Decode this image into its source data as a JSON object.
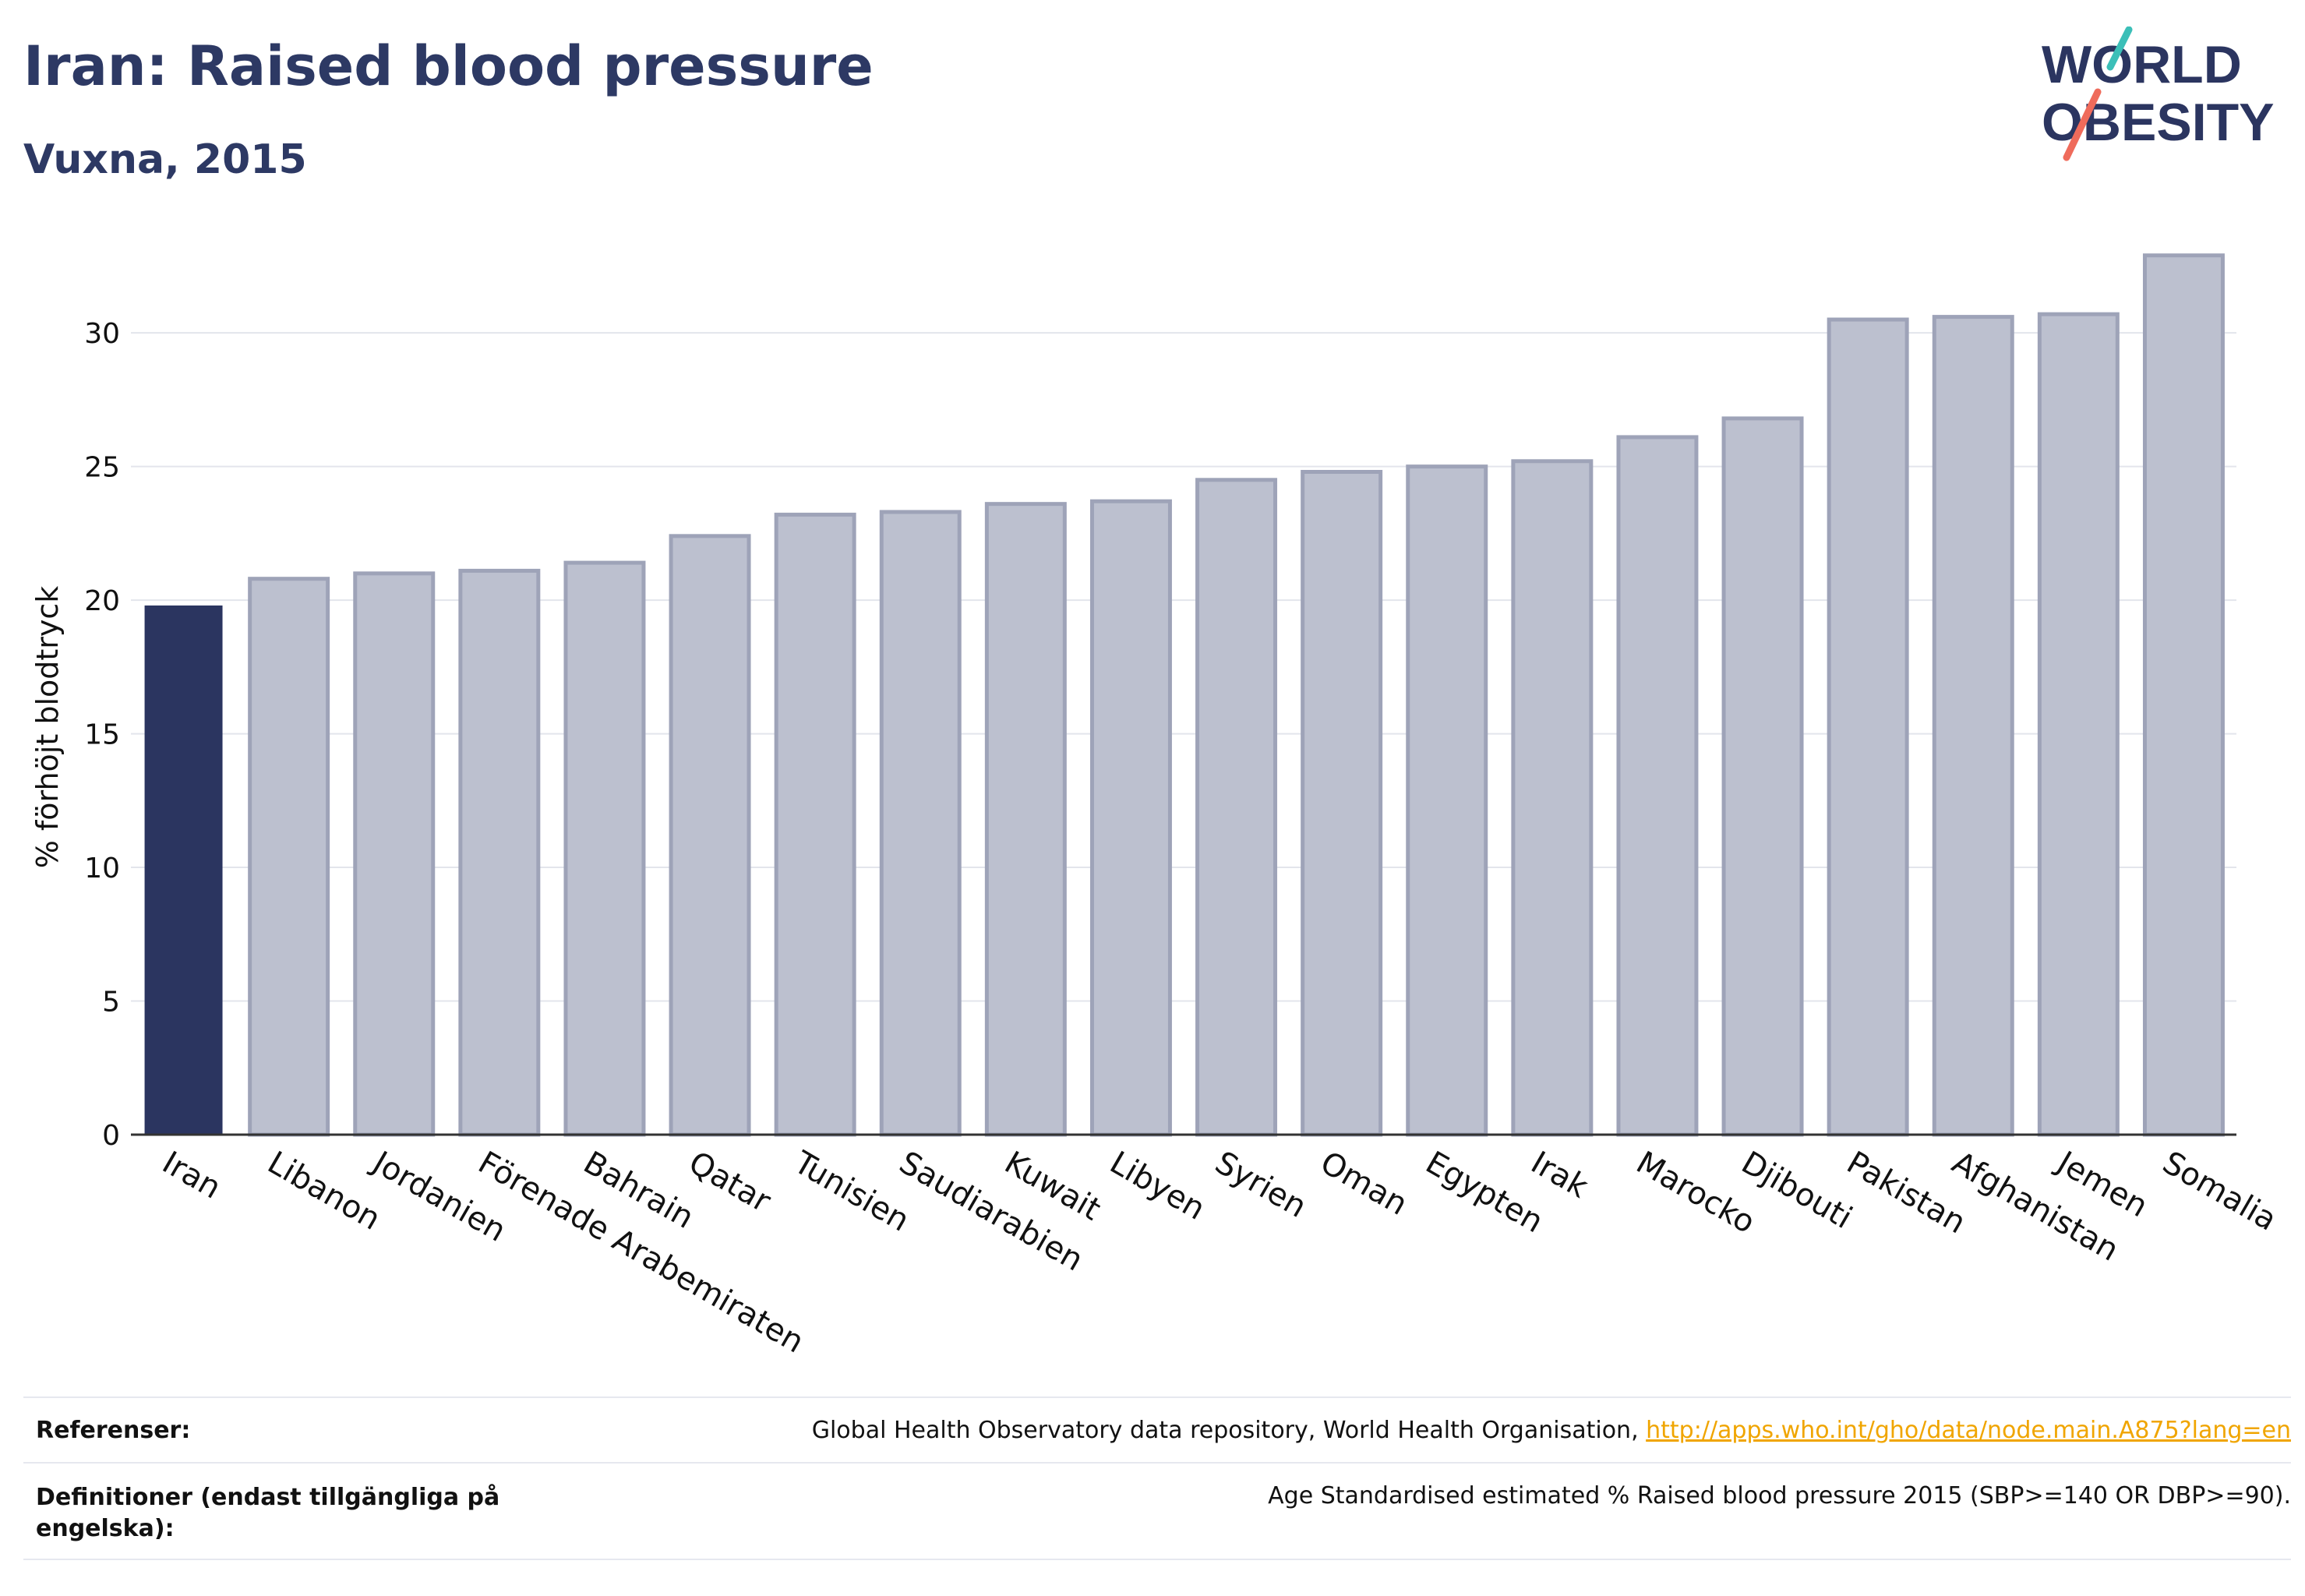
{
  "header": {
    "title": "Iran: Raised blood pressure",
    "subtitle": "Vuxna, 2015"
  },
  "logo": {
    "line1": "WORLD",
    "line2": "OBESITY",
    "accent_teal": "#3bbfb8",
    "accent_coral": "#ef6b5b"
  },
  "colors": {
    "highlight_bar": "#2b3560",
    "other_bar_fill": "#bcc0cf",
    "other_bar_stroke": "#9ea3b8",
    "text": "#2b3560"
  },
  "chart_data": {
    "type": "bar",
    "ylabel": "% förhöjt blodtryck",
    "ylim": [
      0,
      34
    ],
    "yticks": [
      0,
      5,
      10,
      15,
      20,
      25,
      30
    ],
    "grid": true,
    "highlight": "Iran",
    "categories": [
      "Iran",
      "Libanon",
      "Jordanien",
      "Förenade Arabemiraten",
      "Bahrain",
      "Qatar",
      "Tunisien",
      "Saudiarabien",
      "Kuwait",
      "Libyen",
      "Syrien",
      "Oman",
      "Egypten",
      "Irak",
      "Marocko",
      "Djibouti",
      "Pakistan",
      "Afghanistan",
      "Jemen",
      "Somalia"
    ],
    "values": [
      19.8,
      20.8,
      21.0,
      21.1,
      21.4,
      22.4,
      23.2,
      23.3,
      23.6,
      23.7,
      24.5,
      24.8,
      25.0,
      25.2,
      26.1,
      26.8,
      30.5,
      30.6,
      30.7,
      32.9
    ]
  },
  "references": {
    "ref_label": "Referenser:",
    "ref_text": "Global Health Observatory data repository, World Health Organisation, ",
    "ref_link": "http://apps.who.int/gho/data/node.main.A875?lang=en",
    "def_label": "Definitioner (endast tillgängliga på engelska):",
    "def_text": "Age Standardised estimated % Raised blood pressure 2015 (SBP>=140 OR DBP>=90)."
  }
}
